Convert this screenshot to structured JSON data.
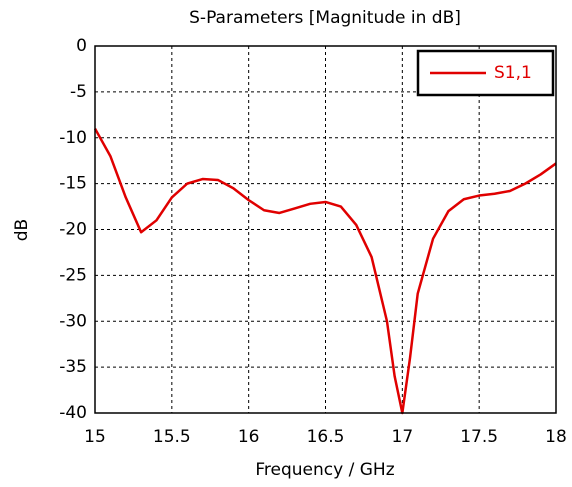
{
  "chart_data": {
    "type": "line",
    "title": "S-Parameters [Magnitude in dB]",
    "x_label": "Frequency / GHz",
    "y_label": "dB",
    "x": [
      15.0,
      15.1,
      15.2,
      15.3,
      15.4,
      15.5,
      15.6,
      15.7,
      15.8,
      15.9,
      16.0,
      16.1,
      16.2,
      16.3,
      16.4,
      16.5,
      16.6,
      16.7,
      16.8,
      16.9,
      16.95,
      17.0,
      17.05,
      17.1,
      17.2,
      17.3,
      17.4,
      17.5,
      17.6,
      17.7,
      17.8,
      17.9,
      18.0
    ],
    "series": [
      {
        "name": "S1,1",
        "color": "#e00000",
        "values": [
          -9,
          -12,
          -16.5,
          -20.3,
          -19,
          -16.5,
          -15,
          -14.5,
          -14.6,
          -15.5,
          -16.8,
          -17.9,
          -18.2,
          -17.7,
          -17.2,
          -17,
          -17.5,
          -19.5,
          -23,
          -30,
          -36,
          -40,
          -34,
          -27,
          -21,
          -18,
          -16.7,
          -16.3,
          -16.1,
          -15.8,
          -15,
          -14,
          -12.8
        ]
      }
    ],
    "xlim": [
      15,
      18
    ],
    "xticks": [
      15,
      15.5,
      16,
      16.5,
      17,
      17.5,
      18
    ],
    "ylim": [
      -40,
      0
    ],
    "yticks": [
      0,
      -5,
      -10,
      -15,
      -20,
      -25,
      -30,
      -35,
      -40
    ],
    "grid": true,
    "legend": "upper right"
  }
}
